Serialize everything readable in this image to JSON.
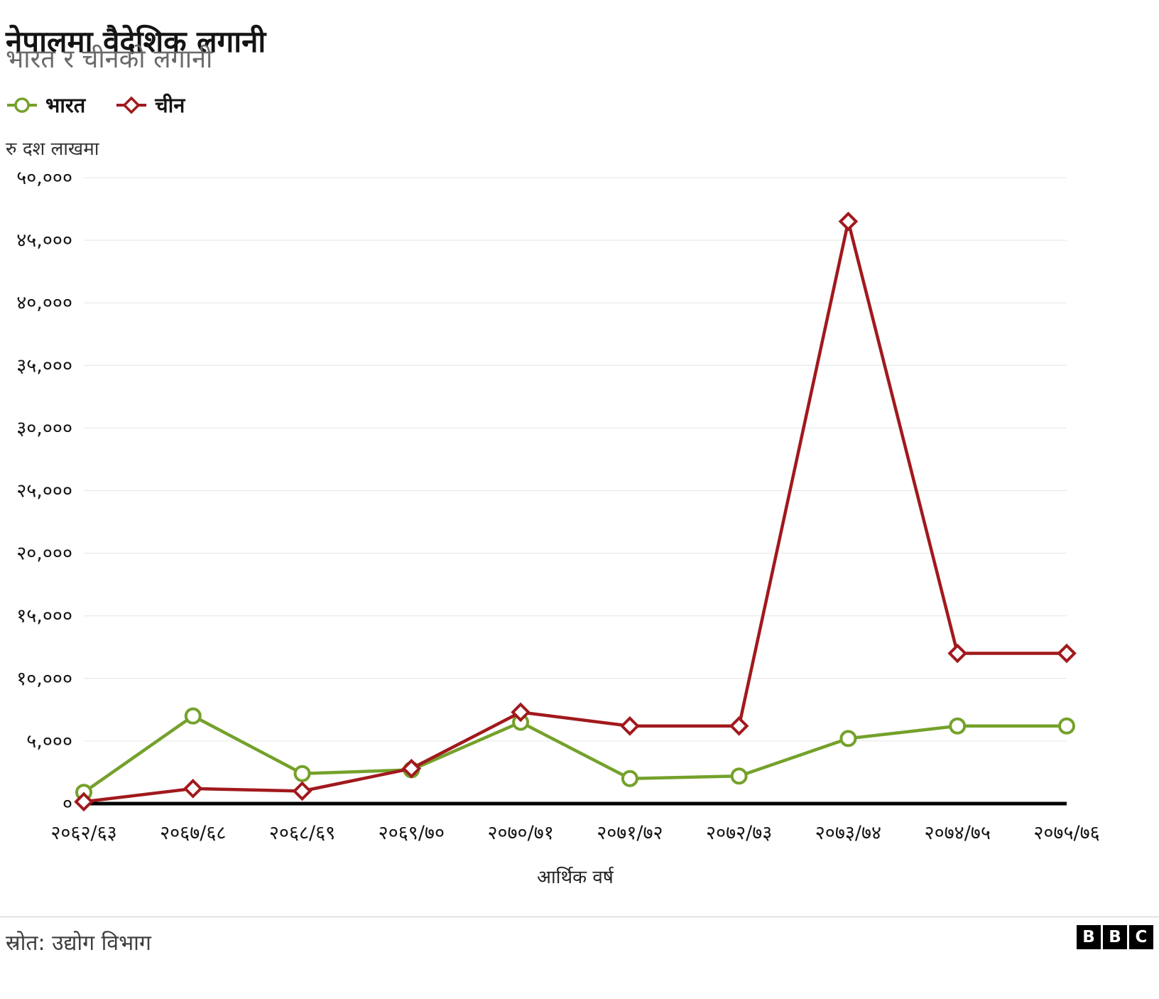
{
  "header": {
    "title": "नेपालमा वैदेशिक लगानी",
    "subtitle": "भारत र चीनको लगानी"
  },
  "legend": [
    {
      "label": "भारत",
      "color": "#74a12b",
      "marker": "circle"
    },
    {
      "label": "चीन",
      "color": "#a1191d",
      "marker": "diamond"
    }
  ],
  "chart_data": {
    "type": "line",
    "title": "नेपालमा वैदेशिक लगानी",
    "subtitle": "भारत र चीनको लगानी",
    "unit_label": "रु दश लाखमा",
    "xlabel": "आर्थिक वर्ष",
    "ylabel": "रु दश लाखमा",
    "grid": true,
    "legend_position": "top-left",
    "ylim": [
      0,
      50000
    ],
    "ytick_step": 5000,
    "categories": [
      "२०६२/६३",
      "२०६७/६८",
      "२०६८/६९",
      "२०६९/७०",
      "२०७०/७१",
      "२०७१/७२",
      "२०७२/७३",
      "२०७३/७४",
      "२०७४/७५",
      "२०७५/७६"
    ],
    "series": [
      {
        "name": "भारत",
        "color": "#74a12b",
        "marker": "circle",
        "values": [
          900,
          7000,
          2400,
          2700,
          6500,
          2000,
          2200,
          5200,
          6200,
          6200
        ]
      },
      {
        "name": "चीन",
        "color": "#a1191d",
        "marker": "diamond",
        "values": [
          150,
          1200,
          1000,
          2800,
          7300,
          6200,
          6200,
          46500,
          12000,
          12000
        ]
      }
    ],
    "yticks": [
      {
        "value": 0,
        "label": "०"
      },
      {
        "value": 5000,
        "label": "५,०००"
      },
      {
        "value": 10000,
        "label": "१०,०००"
      },
      {
        "value": 15000,
        "label": "१५,०००"
      },
      {
        "value": 20000,
        "label": "२०,०००"
      },
      {
        "value": 25000,
        "label": "२५,०००"
      },
      {
        "value": 30000,
        "label": "३०,०००"
      },
      {
        "value": 35000,
        "label": "३५,०००"
      },
      {
        "value": 40000,
        "label": "४०,०००"
      },
      {
        "value": 45000,
        "label": "४५,०००"
      },
      {
        "value": 50000,
        "label": "५०,०००"
      }
    ]
  },
  "footer": {
    "source": "स्रोत: उद्योग विभाग",
    "logo_letters": [
      "B",
      "B",
      "C"
    ]
  },
  "colors": {
    "india": "#74a12b",
    "china": "#a1191d",
    "grid": "#e4e4e4",
    "axis": "#000000",
    "subtitle": "#6a6a6a"
  }
}
